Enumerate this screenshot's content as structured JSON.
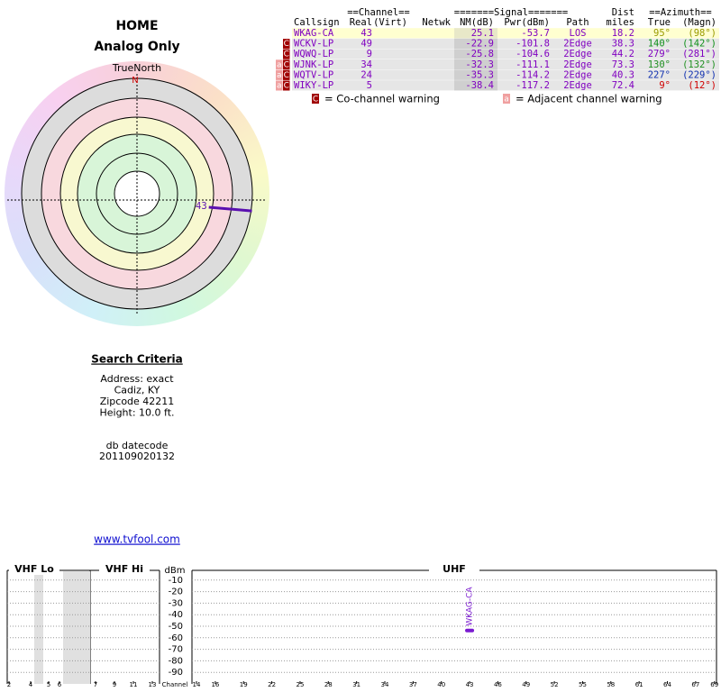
{
  "header": {
    "title": "HOME",
    "subtitle": "Analog Only"
  },
  "polar": {
    "north_label": "TrueNorth",
    "north_marker": "N",
    "stations": [
      {
        "label": "43",
        "azimuth": 95,
        "color": "#5a0fb0"
      }
    ]
  },
  "table": {
    "group_headers": [
      "==Channel==",
      "=======Signal=======",
      "Dist",
      "==Azimuth=="
    ],
    "columns": [
      "Callsign",
      "Real",
      "(Virt)",
      "Netwk",
      "NM(dB)",
      "Pwr(dBm)",
      "Path",
      "miles",
      "True",
      "(Magn)"
    ],
    "rows": [
      {
        "warnings": [],
        "callsign": "WKAG-CA",
        "real": "43",
        "nm": "25.1",
        "pwr": "-53.7",
        "path": "LOS",
        "dist": "18.2",
        "true": "95°",
        "magn": "(98°)",
        "azimuth_color": "#9a9a00"
      },
      {
        "warnings": [
          "C"
        ],
        "callsign": "WCKV-LP",
        "real": "49",
        "nm": "-22.9",
        "pwr": "-101.8",
        "path": "2Edge",
        "dist": "38.3",
        "true": "140°",
        "magn": "(142°)",
        "azimuth_color": "#10901a"
      },
      {
        "warnings": [
          "C"
        ],
        "callsign": "WQWQ-LP",
        "real": "9",
        "nm": "-25.8",
        "pwr": "-104.6",
        "path": "2Edge",
        "dist": "44.2",
        "true": "279°",
        "magn": "(281°)",
        "azimuth_color": "#8000c0"
      },
      {
        "warnings": [
          "a",
          "C"
        ],
        "callsign": "WJNK-LP",
        "real": "34",
        "nm": "-32.3",
        "pwr": "-111.1",
        "path": "2Edge",
        "dist": "73.3",
        "true": "130°",
        "magn": "(132°)",
        "azimuth_color": "#209020"
      },
      {
        "warnings": [
          "a",
          "C"
        ],
        "callsign": "WQTV-LP",
        "real": "24",
        "nm": "-35.3",
        "pwr": "-114.2",
        "path": "2Edge",
        "dist": "40.3",
        "true": "227°",
        "magn": "(229°)",
        "azimuth_color": "#1030b0"
      },
      {
        "warnings": [
          "a",
          "C"
        ],
        "callsign": "WIKY-LP",
        "real": "5",
        "nm": "-38.4",
        "pwr": "-117.2",
        "path": "2Edge",
        "dist": "72.4",
        "true": "9°",
        "magn": "(12°)",
        "azimuth_color": "#d00000"
      }
    ]
  },
  "warning_legend": [
    {
      "marker": "C",
      "text": "= Co-channel warning"
    },
    {
      "marker": "a",
      "text": "= Adjacent channel warning"
    }
  ],
  "criteria": {
    "title": "Search Criteria",
    "lines": [
      "Address: exact",
      "Cadiz, KY",
      "Zipcode 42211",
      "Height: 10.0 ft."
    ]
  },
  "datecode": {
    "label": "db datecode",
    "value": "201109020132"
  },
  "link": "www.tvfool.com",
  "spectrum": {
    "sections": [
      "VHF Lo",
      "VHF Hi",
      "UHF"
    ],
    "y_label": "dBm",
    "x_label": "Channel",
    "ylim": [
      0,
      -100
    ],
    "yticks": [
      -10,
      -20,
      -30,
      -40,
      -50,
      -60,
      -70,
      -80,
      -90
    ],
    "vhf_lo_ticks": [
      2,
      4,
      5,
      6
    ],
    "vhf_hi_ticks": [
      7,
      9,
      11,
      13
    ],
    "uhf_ticks": [
      14,
      16,
      19,
      22,
      25,
      28,
      31,
      34,
      37,
      40,
      43,
      46,
      49,
      52,
      55,
      58,
      61,
      64,
      67,
      69
    ],
    "signals": [
      {
        "channel": 43,
        "power": -53.7,
        "label": "WKAG-CA",
        "color": "#7a1ad0"
      }
    ]
  }
}
